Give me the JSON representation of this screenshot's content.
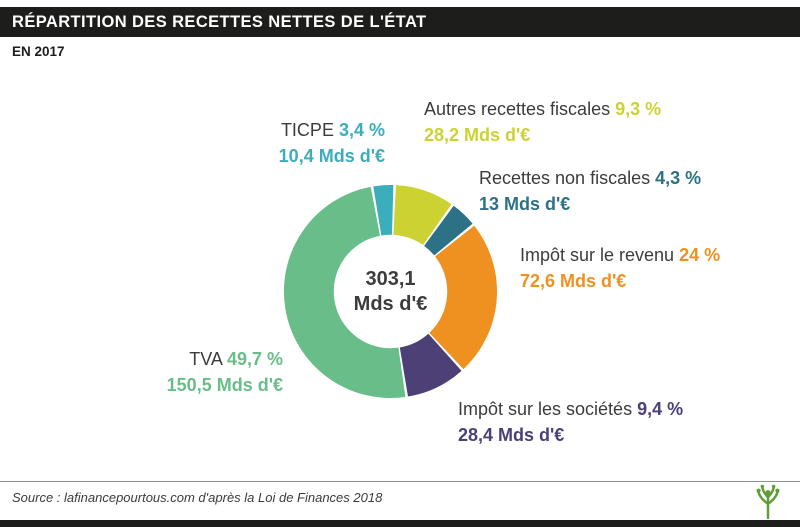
{
  "header": {
    "title": "RÉPARTITION DES RECETTES NETTES DE L'ÉTAT",
    "subtitle": "EN 2017"
  },
  "chart_data": {
    "type": "pie",
    "donut": true,
    "title": "Répartition des recettes nettes de l'État en 2017",
    "start_angle_deg": -10,
    "center_label": {
      "value": "303,1",
      "unit": "Mds d'€"
    },
    "total_label": "303,1 Mds d'€",
    "slices": [
      {
        "name": "TICPE",
        "percent": 3.4,
        "percent_label": "3,4 %",
        "amount_label": "10,4 Mds d'€",
        "color": "#3cadbb"
      },
      {
        "name": "Autres recettes fiscales",
        "percent": 9.3,
        "percent_label": "9,3 %",
        "amount_label": "28,2 Mds d'€",
        "color": "#cdd233"
      },
      {
        "name": "Recettes non fiscales",
        "percent": 4.3,
        "percent_label": "4,3 %",
        "amount_label": "13 Mds d'€",
        "color": "#2d7187"
      },
      {
        "name": "Impôt sur le revenu",
        "percent": 24,
        "percent_label": "24 %",
        "amount_label": "72,6 Mds d'€",
        "color": "#ef9121"
      },
      {
        "name": "Impôt sur les sociétés",
        "percent": 9.4,
        "percent_label": "9,4 %",
        "amount_label": "28,4 Mds d'€",
        "color": "#4c4077"
      },
      {
        "name": "TVA",
        "percent": 49.7,
        "percent_label": "49,7 %",
        "amount_label": "150,5 Mds d'€",
        "color": "#69bd88"
      }
    ]
  },
  "footer": {
    "source": "Source : lafinancepourtous.com d'après la Loi de Finances 2018",
    "logo_color": "#5f9e35"
  }
}
